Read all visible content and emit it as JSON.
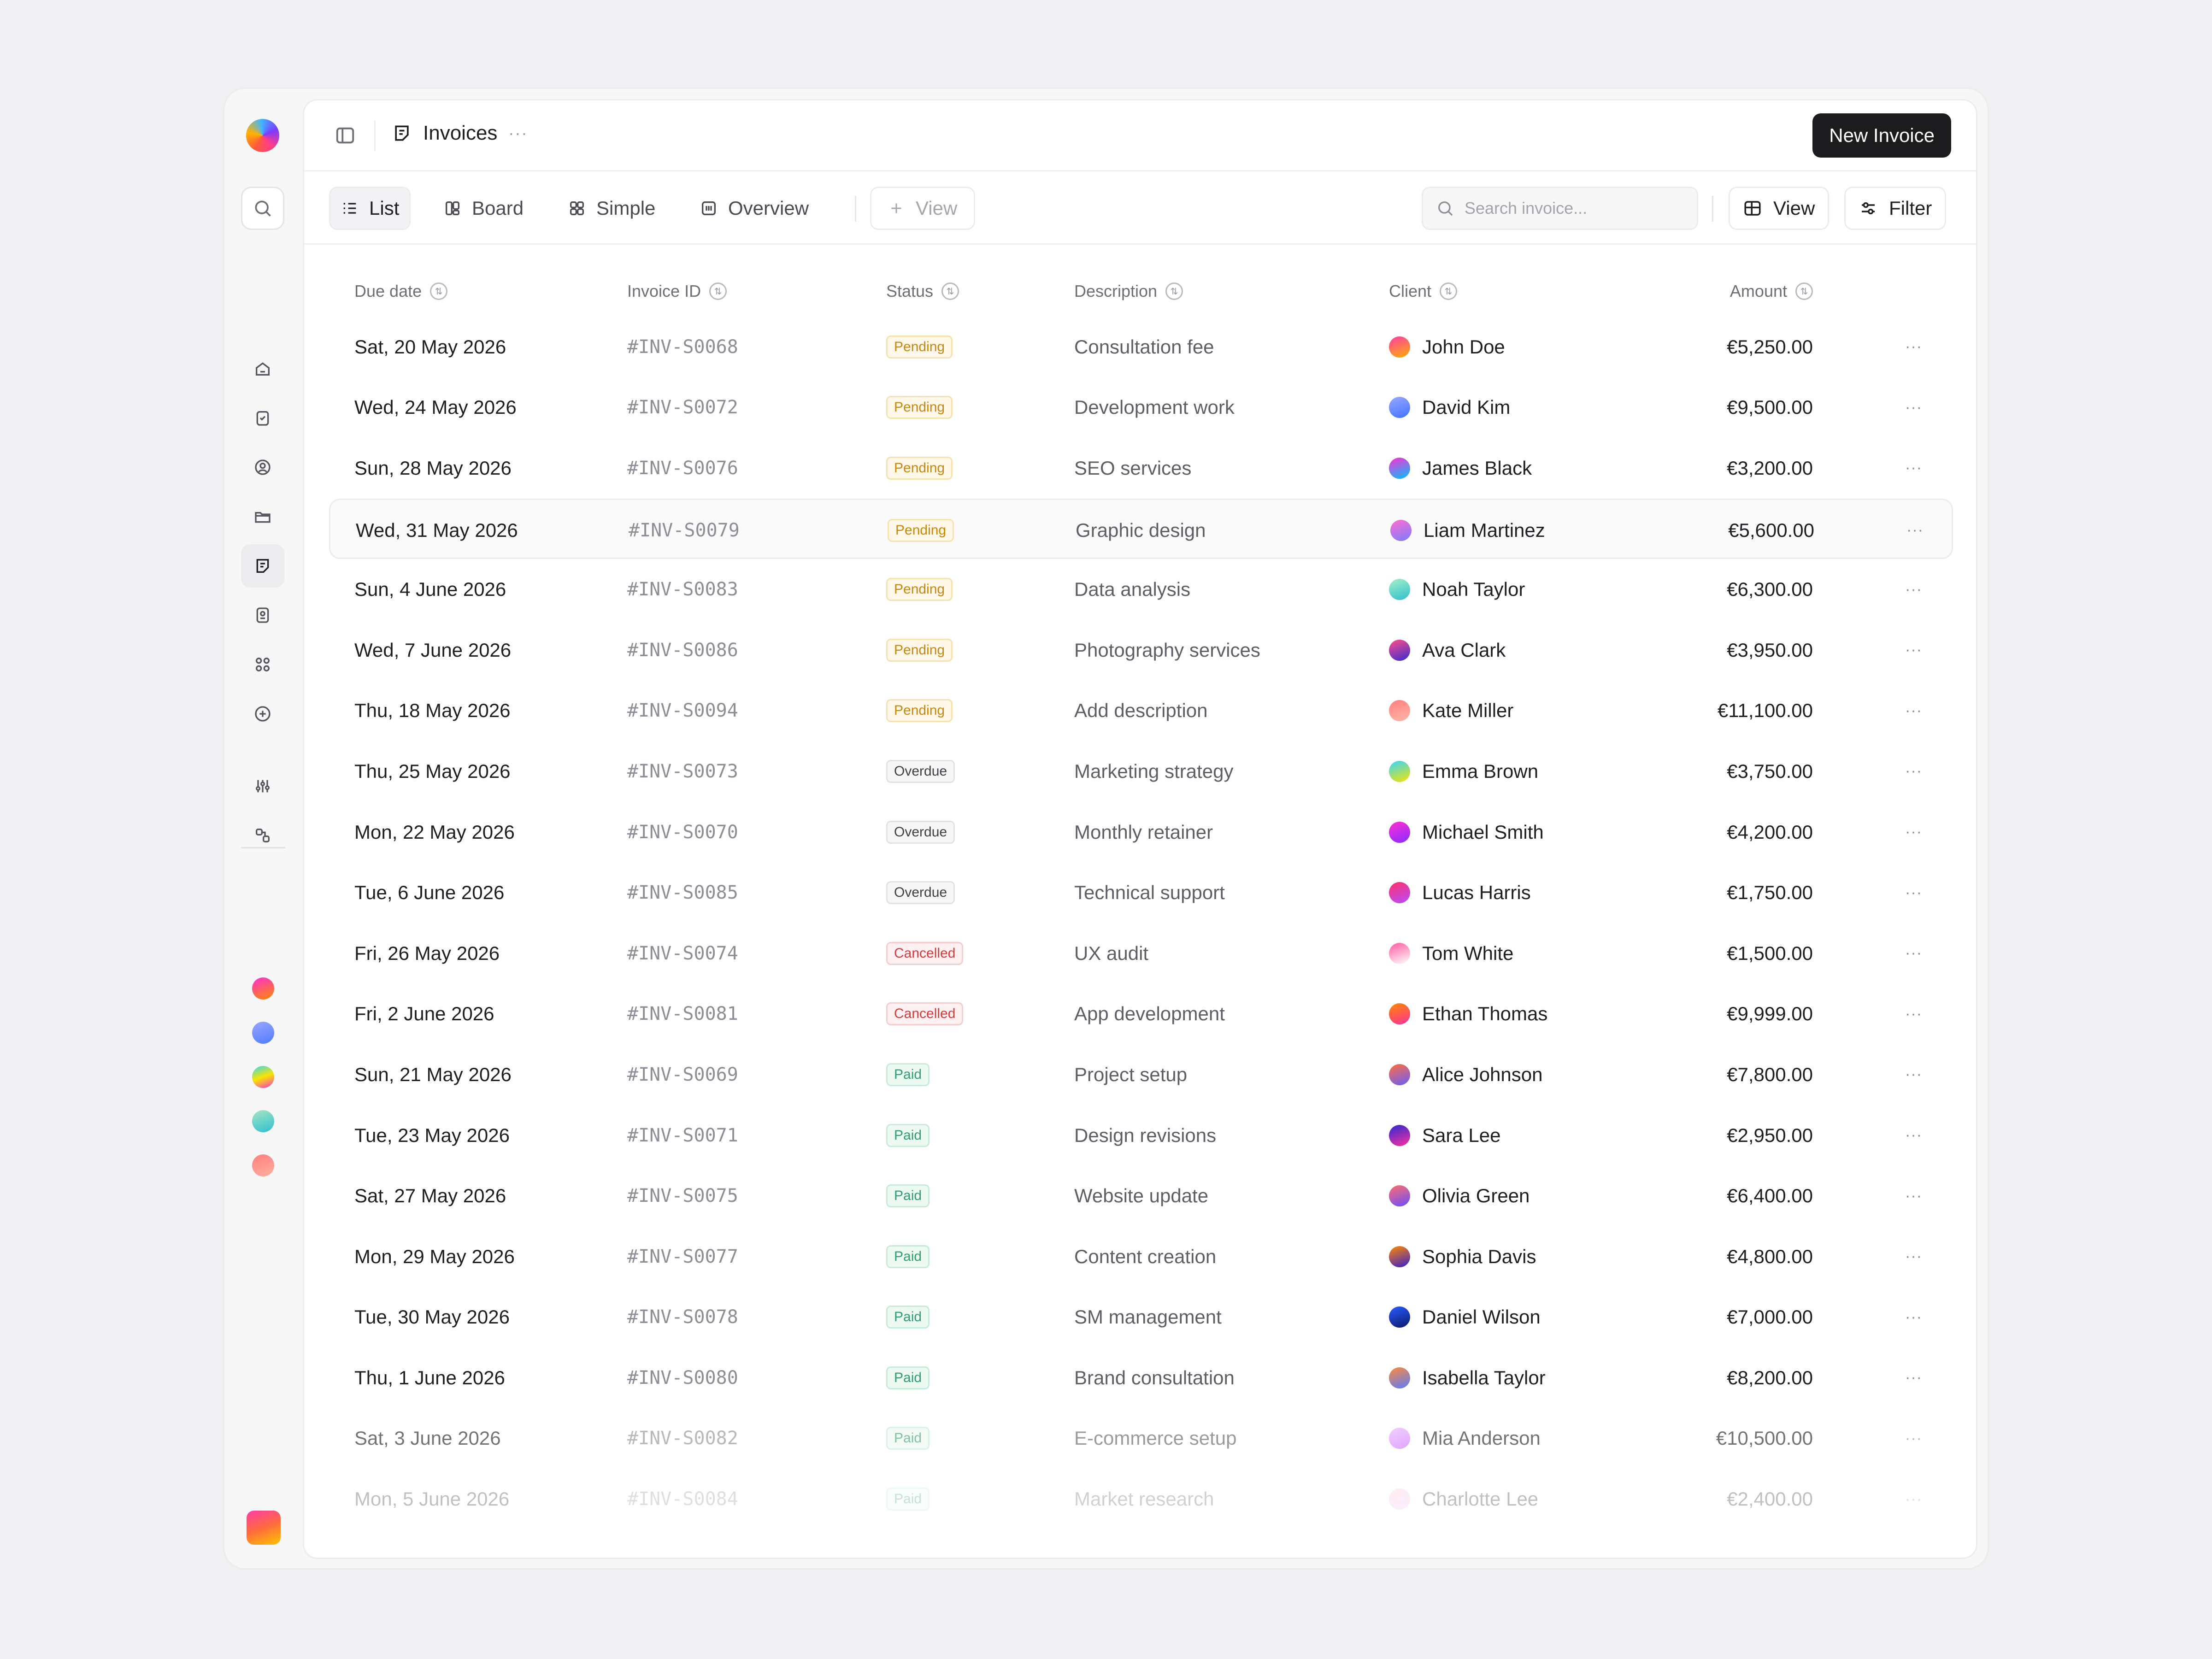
{
  "header": {
    "title": "Invoices",
    "more": "···",
    "new_invoice_label": "New Invoice"
  },
  "toolbar": {
    "tabs": [
      {
        "label": "List",
        "icon": "list-icon",
        "active": true
      },
      {
        "label": "Board",
        "icon": "board-icon",
        "active": false
      },
      {
        "label": "Simple",
        "icon": "grid-icon",
        "active": false
      },
      {
        "label": "Overview",
        "icon": "overview-icon",
        "active": false
      }
    ],
    "add_view_label": "View",
    "search_placeholder": "Search invoice...",
    "view_label": "View",
    "filter_label": "Filter"
  },
  "sidebar": {
    "items": [
      "home-icon",
      "tasks-icon",
      "profile-icon",
      "folder-icon",
      "invoices-icon",
      "contacts-icon",
      "apps-icon",
      "add-icon",
      "settings-sliders-icon",
      "integrations-icon",
      "users-icon"
    ],
    "active_item": "invoices-icon"
  },
  "table": {
    "columns": {
      "due_date": "Due date",
      "invoice_id": "Invoice ID",
      "status": "Status",
      "description": "Description",
      "client": "Client",
      "amount": "Amount"
    },
    "row_action": "···",
    "rows": [
      {
        "date": "Sat, 20 May 2026",
        "id": "#INV-S0068",
        "status": "Pending",
        "desc": "Consultation fee",
        "client": "John Doe",
        "amount": "€5,250.00"
      },
      {
        "date": "Wed, 24 May 2026",
        "id": "#INV-S0072",
        "status": "Pending",
        "desc": "Development work",
        "client": "David Kim",
        "amount": "€9,500.00"
      },
      {
        "date": "Sun, 28 May 2026",
        "id": "#INV-S0076",
        "status": "Pending",
        "desc": "SEO services",
        "client": "James Black",
        "amount": "€3,200.00"
      },
      {
        "date": "Wed, 31 May 2026",
        "id": "#INV-S0079",
        "status": "Pending",
        "desc": "Graphic design",
        "client": "Liam Martinez",
        "amount": "€5,600.00"
      },
      {
        "date": "Sun, 4 June 2026",
        "id": "#INV-S0083",
        "status": "Pending",
        "desc": "Data analysis",
        "client": "Noah Taylor",
        "amount": "€6,300.00"
      },
      {
        "date": "Wed, 7 June 2026",
        "id": "#INV-S0086",
        "status": "Pending",
        "desc": "Photography services",
        "client": "Ava Clark",
        "amount": "€3,950.00"
      },
      {
        "date": "Thu, 18 May 2026",
        "id": "#INV-S0094",
        "status": "Pending",
        "desc": "Add description",
        "client": "Kate Miller",
        "amount": "€11,100.00"
      },
      {
        "date": "Thu, 25 May 2026",
        "id": "#INV-S0073",
        "status": "Overdue",
        "desc": "Marketing strategy",
        "client": "Emma Brown",
        "amount": "€3,750.00"
      },
      {
        "date": "Mon, 22 May 2026",
        "id": "#INV-S0070",
        "status": "Overdue",
        "desc": "Monthly retainer",
        "client": "Michael Smith",
        "amount": "€4,200.00"
      },
      {
        "date": "Tue, 6 June 2026",
        "id": "#INV-S0085",
        "status": "Overdue",
        "desc": "Technical support",
        "client": "Lucas Harris",
        "amount": "€1,750.00"
      },
      {
        "date": "Fri, 26 May 2026",
        "id": "#INV-S0074",
        "status": "Cancelled",
        "desc": "UX audit",
        "client": "Tom White",
        "amount": "€1,500.00"
      },
      {
        "date": "Fri, 2 June 2026",
        "id": "#INV-S0081",
        "status": "Cancelled",
        "desc": "App development",
        "client": "Ethan Thomas",
        "amount": "€9,999.00"
      },
      {
        "date": "Sun, 21 May 2026",
        "id": "#INV-S0069",
        "status": "Paid",
        "desc": "Project setup",
        "client": "Alice Johnson",
        "amount": "€7,800.00"
      },
      {
        "date": "Tue, 23 May 2026",
        "id": "#INV-S0071",
        "status": "Paid",
        "desc": "Design revisions",
        "client": "Sara Lee",
        "amount": "€2,950.00"
      },
      {
        "date": "Sat, 27 May 2026",
        "id": "#INV-S0075",
        "status": "Paid",
        "desc": "Website update",
        "client": "Olivia Green",
        "amount": "€6,400.00"
      },
      {
        "date": "Mon, 29 May 2026",
        "id": "#INV-S0077",
        "status": "Paid",
        "desc": "Content creation",
        "client": "Sophia Davis",
        "amount": "€4,800.00"
      },
      {
        "date": "Tue, 30 May 2026",
        "id": "#INV-S0078",
        "status": "Paid",
        "desc": "SM management",
        "client": "Daniel Wilson",
        "amount": "€7,000.00"
      },
      {
        "date": "Thu, 1 June 2026",
        "id": "#INV-S0080",
        "status": "Paid",
        "desc": "Brand consultation",
        "client": "Isabella Taylor",
        "amount": "€8,200.00"
      },
      {
        "date": "Sat, 3 June 2026",
        "id": "#INV-S0082",
        "status": "Paid",
        "desc": "E-commerce setup",
        "client": "Mia Anderson",
        "amount": "€10,500.00"
      },
      {
        "date": "Mon, 5 June 2026",
        "id": "#INV-S0084",
        "status": "Paid",
        "desc": "Market research",
        "client": "Charlotte Lee",
        "amount": "€2,400.00"
      }
    ]
  },
  "colors": {
    "primary_button": "#1c1c1f",
    "pending": "#c8870b",
    "overdue": "#3f3f46",
    "cancelled": "#d63b3b",
    "paid": "#2e9e6b"
  }
}
